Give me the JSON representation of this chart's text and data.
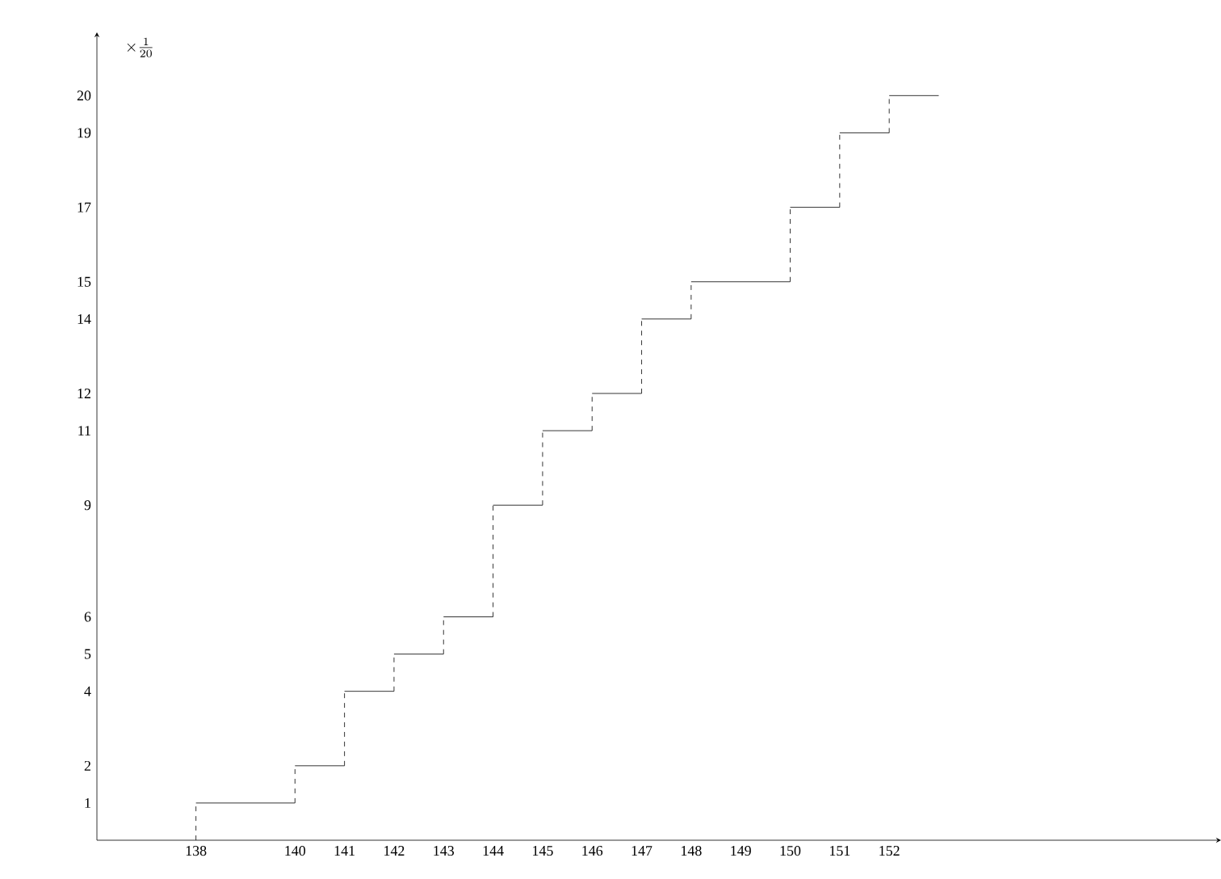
{
  "chart_data": {
    "type": "step",
    "ylabel": "\\times\\frac{1}{20}",
    "x": [
      138,
      138,
      140,
      141,
      142,
      143,
      144,
      145,
      146,
      147,
      148,
      150,
      151,
      152,
      153
    ],
    "values": [
      0,
      1,
      2,
      4,
      5,
      6,
      9,
      11,
      12,
      14,
      15,
      17,
      19,
      20,
      20
    ],
    "color": "#000000",
    "xlim": [
      136,
      158.7
    ],
    "ylim": [
      0,
      21.7
    ],
    "xticks": [
      138,
      140,
      141,
      142,
      143,
      144,
      145,
      146,
      147,
      148,
      149,
      150,
      151,
      152
    ],
    "yticks": [
      1,
      2,
      4,
      5,
      6,
      9,
      11,
      12,
      14,
      15,
      17,
      19,
      20
    ],
    "grid": false
  }
}
